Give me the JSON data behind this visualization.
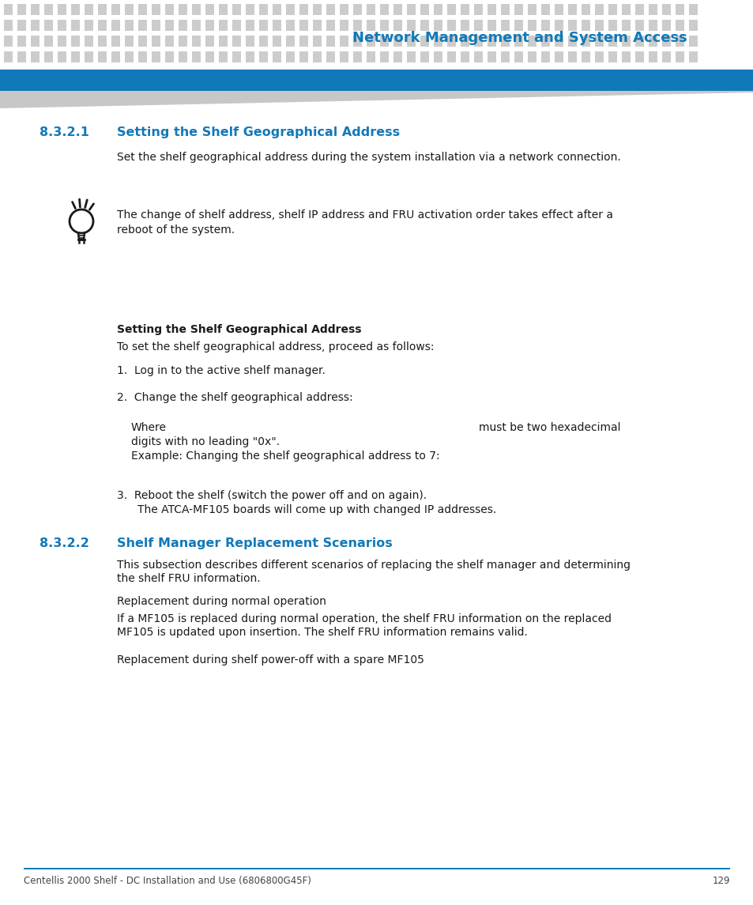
{
  "bg_color": "#ffffff",
  "header_dot_color": "#cccccc",
  "header_bar_color": "#1279b8",
  "header_title": "Network Management and System Access",
  "header_title_color": "#1279b8",
  "footer_line_color": "#1279b8",
  "footer_text": "Centellis 2000 Shelf - DC Installation and Use (6806800G45F)",
  "footer_page": "129",
  "footer_color": "#444444",
  "section1_num": "8.3.2.1",
  "section1_title": "Setting the Shelf Geographical Address",
  "section_color": "#1279b8",
  "section1_body": "Set the shelf geographical address during the system installation via a network connection.",
  "tip_text": "The change of shelf address, shelf IP address and FRU activation order takes effect after a\nreboot of the system.",
  "subsection_title": "Setting the Shelf Geographical Address",
  "subsection_body1": "To set the shelf geographical address, proceed as follows:",
  "step1": "Log in to the active shelf manager.",
  "step2": "Change the shelf geographical address:",
  "where_left": "Where",
  "where_right": "must be two hexadecimal",
  "where_right2": "digits with no leading \"0x\".",
  "example_text": "Example: Changing the shelf geographical address to 7:",
  "step3_line1": "Reboot the shelf (switch the power off and on again).",
  "step3_line2": "The ATCA-MF105 boards will come up with changed IP addresses.",
  "section2_num": "8.3.2.2",
  "section2_title": "Shelf Manager Replacement Scenarios",
  "section2_body1a": "This subsection describes different scenarios of replacing the shelf manager and determining",
  "section2_body1b": "the shelf FRU information.",
  "section2_body2": "Replacement during normal operation",
  "section2_body3a": "If a MF105 is replaced during normal operation, the shelf FRU information on the replaced",
  "section2_body3b": "MF105 is updated upon insertion. The shelf FRU information remains valid.",
  "section2_body4": "Replacement during shelf power-off with a spare MF105",
  "body_color": "#1a1a1a",
  "body_fontsize": 10.0,
  "section_fontsize": 11.5
}
